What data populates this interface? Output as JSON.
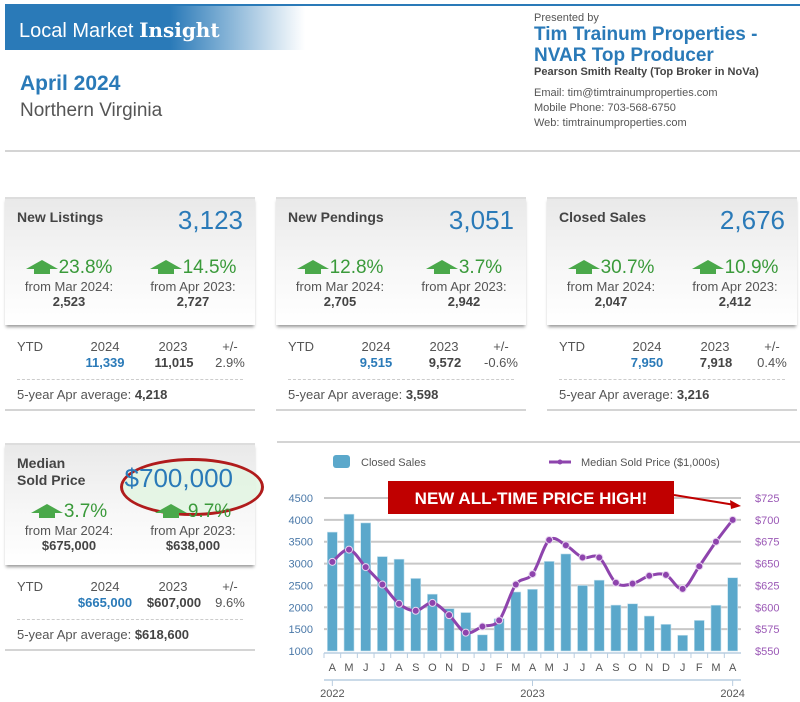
{
  "header": {
    "banner_prefix": "Local Market",
    "banner_bold": "Insight",
    "period": "April 2024",
    "region": "Northern Virginia",
    "presented_by": "Presented by",
    "agent_line1": "Tim Trainum Properties -",
    "agent_line2": "NVAR Top Producer",
    "broker": "Pearson Smith Realty (Top Broker in NoVa)",
    "email": "Email: tim@timtrainumproperties.com",
    "phone": "Mobile Phone: 703-568-6750",
    "web": "Web: timtrainumproperties.com"
  },
  "cards": [
    {
      "title": "New Listings",
      "value": "3,123",
      "change1_pct": "23.8%",
      "change1_from": "from Mar 2024:",
      "change1_prev": "2,523",
      "change2_pct": "14.5%",
      "change2_from": "from Apr 2023:",
      "change2_prev": "2,727",
      "ytd_label": "YTD",
      "ytd_h24": "2024",
      "ytd_h23": "2023",
      "ytd_hpm": "+/-",
      "ytd_v24": "11,339",
      "ytd_v23": "11,015",
      "ytd_vpm": "2.9%",
      "avg_label": "5-year Apr average:",
      "avg_value": "4,218"
    },
    {
      "title": "New Pendings",
      "value": "3,051",
      "change1_pct": "12.8%",
      "change1_from": "from Mar 2024:",
      "change1_prev": "2,705",
      "change2_pct": "3.7%",
      "change2_from": "from Apr 2023:",
      "change2_prev": "2,942",
      "ytd_label": "YTD",
      "ytd_h24": "2024",
      "ytd_h23": "2023",
      "ytd_hpm": "+/-",
      "ytd_v24": "9,515",
      "ytd_v23": "9,572",
      "ytd_vpm": "-0.6%",
      "avg_label": "5-year Apr average:",
      "avg_value": "3,598"
    },
    {
      "title": "Closed Sales",
      "value": "2,676",
      "change1_pct": "30.7%",
      "change1_from": "from Mar 2024:",
      "change1_prev": "2,047",
      "change2_pct": "10.9%",
      "change2_from": "from Apr 2023:",
      "change2_prev": "2,412",
      "ytd_label": "YTD",
      "ytd_h24": "2024",
      "ytd_h23": "2023",
      "ytd_hpm": "+/-",
      "ytd_v24": "7,950",
      "ytd_v23": "7,918",
      "ytd_vpm": "0.4%",
      "avg_label": "5-year Apr average:",
      "avg_value": "3,216"
    },
    {
      "title_line1": "Median",
      "title_line2": "Sold Price",
      "value": "$700,000",
      "change1_pct": "3.7%",
      "change1_from": "from Mar 2024:",
      "change1_prev": "$675,000",
      "change2_pct": "9.7%",
      "change2_from": "from Apr 2023:",
      "change2_prev": "$638,000",
      "ytd_label": "YTD",
      "ytd_h24": "2024",
      "ytd_h23": "2023",
      "ytd_hpm": "+/-",
      "ytd_v24": "$665,000",
      "ytd_v23": "$607,000",
      "ytd_vpm": "9.6%",
      "avg_label": "5-year Apr average:",
      "avg_value": "$618,600"
    }
  ],
  "colors": {
    "brand_blue": "#2a7ab8",
    "bar_blue": "#5ba8cb",
    "line_purple": "#8e44ad",
    "up_green": "#3a9a3a",
    "callout_red": "#c00000"
  },
  "chart_data": {
    "type": "bar+line",
    "title": "",
    "callout": "NEW ALL-TIME PRICE HIGH!",
    "legend": [
      "Closed Sales",
      "Median Sold Price ($1,000s)"
    ],
    "legend_placement": "top",
    "categories": [
      "A",
      "M",
      "J",
      "J",
      "A",
      "S",
      "O",
      "N",
      "D",
      "J",
      "F",
      "M",
      "A",
      "M",
      "J",
      "J",
      "A",
      "S",
      "O",
      "N",
      "D",
      "J",
      "F",
      "M",
      "A"
    ],
    "year_labels": [
      {
        "label": "2022",
        "index": 0
      },
      {
        "label": "2023",
        "index": 12
      },
      {
        "label": "2024",
        "index": 24
      }
    ],
    "series": [
      {
        "name": "Closed Sales",
        "type": "bar",
        "axis": "left",
        "values": [
          3720,
          4130,
          3930,
          3160,
          3100,
          2660,
          2300,
          1970,
          1880,
          1370,
          1740,
          2350,
          2412,
          3050,
          3220,
          2500,
          2620,
          2050,
          2080,
          1800,
          1610,
          1360,
          1700,
          2047,
          2676
        ]
      },
      {
        "name": "Median Sold Price ($1,000s)",
        "type": "line",
        "axis": "right",
        "values": [
          652,
          666,
          646,
          626,
          604,
          596,
          605,
          591,
          571,
          578,
          585,
          626,
          638,
          677,
          671,
          657,
          657,
          628,
          627,
          636,
          637,
          621,
          647,
          675,
          700
        ]
      }
    ],
    "y_left": {
      "min": 1000,
      "max": 4500,
      "ticks": [
        "1000",
        "1500",
        "2000",
        "2500",
        "3000",
        "3500",
        "4000",
        "4500"
      ]
    },
    "y_right": {
      "min": 550,
      "max": 725,
      "ticks": [
        "$550",
        "$575",
        "$600",
        "$625",
        "$650",
        "$675",
        "$700",
        "$725"
      ]
    },
    "grid": true
  }
}
